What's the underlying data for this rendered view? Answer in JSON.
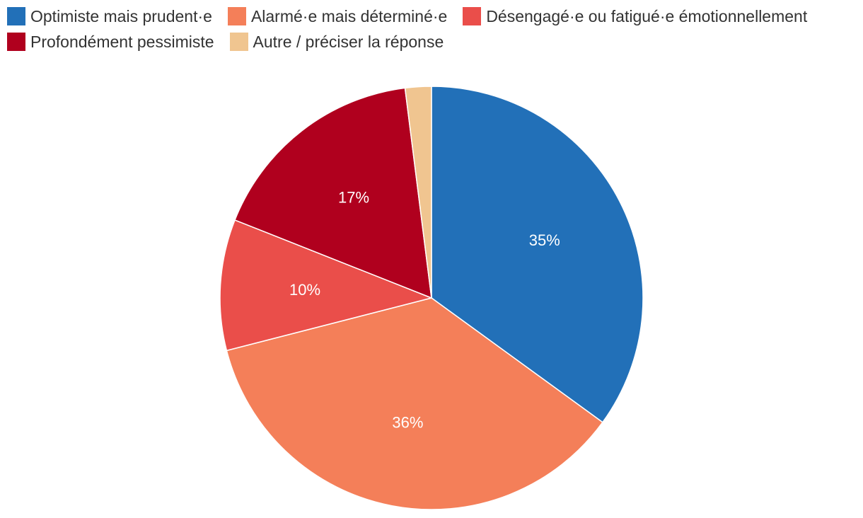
{
  "chart_data": {
    "type": "pie",
    "title": "",
    "legend_position": "top-left",
    "slices": [
      {
        "name": "Optimiste mais prudent·e",
        "value": 35,
        "label": "35%",
        "color": "#2270b8"
      },
      {
        "name": "Alarmé·e mais déterminé·e",
        "value": 36,
        "label": "36%",
        "color": "#f47f59"
      },
      {
        "name": "Désengagé·e ou fatigué·e émotionnellement",
        "value": 10,
        "label": "10%",
        "color": "#ea4e4a"
      },
      {
        "name": "Profondément pessimiste",
        "value": 17,
        "label": "17%",
        "color": "#b0001e"
      },
      {
        "name": "Autre / préciser la réponse",
        "value": 2,
        "label": "",
        "color": "#f0c590"
      }
    ]
  }
}
